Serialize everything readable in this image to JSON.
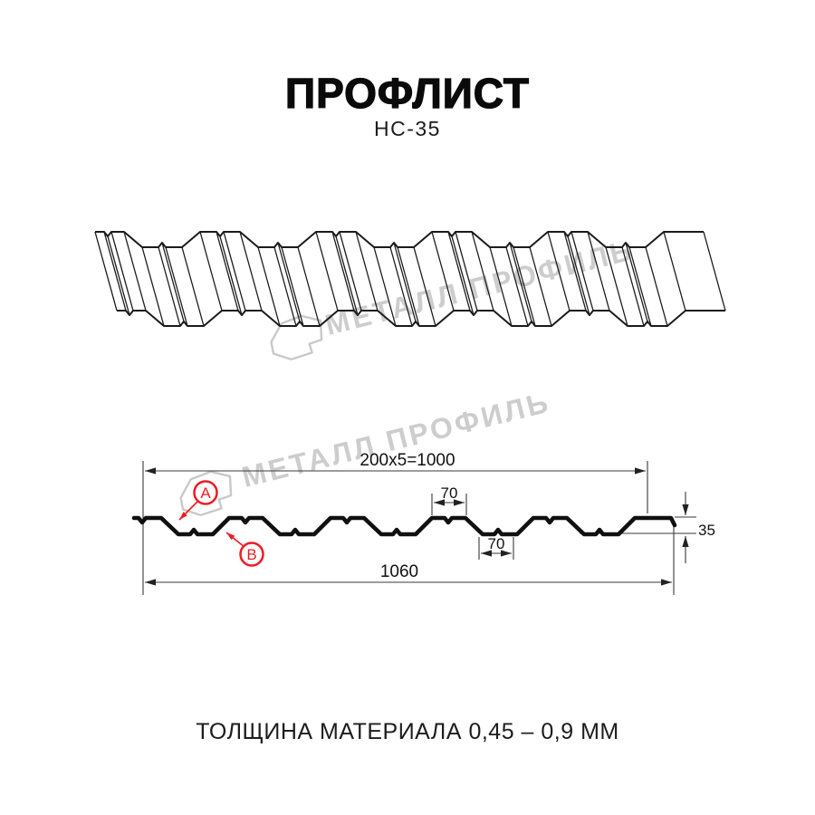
{
  "header": {
    "title": "ПРОФЛИСТ",
    "subtitle": "НС-35"
  },
  "watermark": {
    "brand": "МЕТАЛЛ ПРОФИЛЬ"
  },
  "diagram": {
    "dimensions": {
      "working_width": "200x5=1000",
      "overall_width": "1060",
      "rib_top_width": "70",
      "rib_bottom_width": "70",
      "profile_height": "35"
    },
    "callouts": {
      "a": "A",
      "b": "B"
    }
  },
  "footer": {
    "thickness_label": "ТОЛЩИНА МАТЕРИАЛА 0,45 – 0,9 ММ"
  },
  "colors": {
    "accent_red": "#ED1C24",
    "line": "#1b1b1b",
    "watermark": "#cdcdcd"
  }
}
